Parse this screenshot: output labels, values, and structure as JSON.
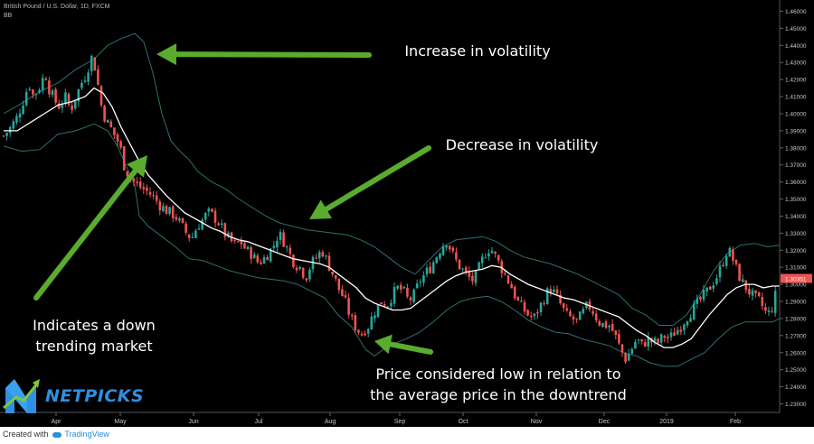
{
  "header": {
    "symbol_title": "British Pound / U.S. Dollar, 1D, FXCM",
    "indicator": "BB"
  },
  "annotations": {
    "increase": "Increase in volatility",
    "decrease": "Decrease in volatility",
    "down_line1": "Indicates a down",
    "down_line2": "trending market",
    "low_line1": "Price considered low in relation to",
    "low_line2": "the average price in the downtrend"
  },
  "logo": {
    "text": "NETPICKS"
  },
  "footer": {
    "created": "Created with",
    "brand": "TradingView"
  },
  "price_tag": "1.30351",
  "colors": {
    "up": "#26a69a",
    "down": "#ef5350",
    "bands": "#2f6f74",
    "basis": "#ffffff",
    "arrow": "#5aab2e",
    "tag": "#ef5350"
  },
  "chart_data": {
    "type": "candlestick",
    "y_ticks": [
      "1.46000",
      "1.45000",
      "1.44000",
      "1.43000",
      "1.42000",
      "1.41000",
      "1.40000",
      "1.39000",
      "1.38000",
      "1.37000",
      "1.36000",
      "1.35000",
      "1.34000",
      "1.33000",
      "1.32000",
      "1.31000",
      "1.30000",
      "1.29000",
      "1.28000",
      "1.27000",
      "1.26000",
      "1.25000",
      "1.24000",
      "1.23000"
    ],
    "ylim": [
      1.2255,
      1.4645
    ],
    "x_ticks": [
      "Apr",
      "May",
      "Jun",
      "Jul",
      "Aug",
      "Sep",
      "Oct",
      "Nov",
      "Dec",
      "2019",
      "Feb"
    ],
    "last_price": 1.30351,
    "close_path": [
      [
        0,
        1.387
      ],
      [
        8,
        1.392
      ],
      [
        15,
        1.398
      ],
      [
        22,
        1.408
      ],
      [
        28,
        1.418
      ],
      [
        33,
        1.41
      ],
      [
        40,
        1.416
      ],
      [
        46,
        1.424
      ],
      [
        50,
        1.415
      ],
      [
        56,
        1.408
      ],
      [
        62,
        1.404
      ],
      [
        68,
        1.41
      ],
      [
        74,
        1.402
      ],
      [
        80,
        1.41
      ],
      [
        86,
        1.418
      ],
      [
        90,
        1.422
      ],
      [
        94,
        1.428
      ],
      [
        97,
        1.433
      ],
      [
        100,
        1.43
      ],
      [
        104,
        1.418
      ],
      [
        108,
        1.405
      ],
      [
        113,
        1.396
      ],
      [
        118,
        1.392
      ],
      [
        122,
        1.388
      ],
      [
        126,
        1.384
      ],
      [
        130,
        1.378
      ],
      [
        133,
        1.37
      ],
      [
        136,
        1.366
      ],
      [
        140,
        1.363
      ],
      [
        144,
        1.36
      ],
      [
        148,
        1.358
      ],
      [
        154,
        1.356
      ],
      [
        160,
        1.354
      ],
      [
        166,
        1.351
      ],
      [
        172,
        1.347
      ],
      [
        178,
        1.344
      ],
      [
        184,
        1.342
      ],
      [
        190,
        1.34
      ],
      [
        196,
        1.335
      ],
      [
        202,
        1.33
      ],
      [
        208,
        1.327
      ],
      [
        214,
        1.334
      ],
      [
        220,
        1.338
      ],
      [
        226,
        1.342
      ],
      [
        232,
        1.34
      ],
      [
        238,
        1.336
      ],
      [
        244,
        1.33
      ],
      [
        250,
        1.326
      ],
      [
        256,
        1.323
      ],
      [
        262,
        1.325
      ],
      [
        268,
        1.32
      ],
      [
        274,
        1.318
      ],
      [
        280,
        1.313
      ],
      [
        286,
        1.314
      ],
      [
        292,
        1.318
      ],
      [
        298,
        1.322
      ],
      [
        304,
        1.33
      ],
      [
        310,
        1.325
      ],
      [
        316,
        1.318
      ],
      [
        322,
        1.312
      ],
      [
        328,
        1.31
      ],
      [
        334,
        1.304
      ],
      [
        340,
        1.312
      ],
      [
        346,
        1.316
      ],
      [
        352,
        1.32
      ],
      [
        358,
        1.313
      ],
      [
        364,
        1.306
      ],
      [
        370,
        1.298
      ],
      [
        376,
        1.292
      ],
      [
        380,
        1.286
      ],
      [
        384,
        1.28
      ],
      [
        388,
        1.276
      ],
      [
        392,
        1.273
      ],
      [
        396,
        1.271
      ],
      [
        400,
        1.274
      ],
      [
        404,
        1.276
      ],
      [
        408,
        1.282
      ],
      [
        412,
        1.286
      ],
      [
        418,
        1.29
      ],
      [
        424,
        1.288
      ],
      [
        430,
        1.294
      ],
      [
        436,
        1.298
      ],
      [
        442,
        1.296
      ],
      [
        448,
        1.29
      ],
      [
        454,
        1.294
      ],
      [
        460,
        1.302
      ],
      [
        466,
        1.306
      ],
      [
        472,
        1.31
      ],
      [
        478,
        1.316
      ],
      [
        484,
        1.322
      ],
      [
        490,
        1.326
      ],
      [
        496,
        1.318
      ],
      [
        502,
        1.312
      ],
      [
        508,
        1.308
      ],
      [
        514,
        1.304
      ],
      [
        520,
        1.302
      ],
      [
        526,
        1.31
      ],
      [
        532,
        1.318
      ],
      [
        538,
        1.322
      ],
      [
        544,
        1.316
      ],
      [
        550,
        1.31
      ],
      [
        556,
        1.304
      ],
      [
        562,
        1.298
      ],
      [
        568,
        1.29
      ],
      [
        574,
        1.286
      ],
      [
        580,
        1.282
      ],
      [
        586,
        1.28
      ],
      [
        592,
        1.286
      ],
      [
        598,
        1.292
      ],
      [
        604,
        1.298
      ],
      [
        610,
        1.294
      ],
      [
        616,
        1.288
      ],
      [
        622,
        1.282
      ],
      [
        628,
        1.28
      ],
      [
        634,
        1.278
      ],
      [
        640,
        1.283
      ],
      [
        646,
        1.288
      ],
      [
        652,
        1.284
      ],
      [
        658,
        1.278
      ],
      [
        664,
        1.276
      ],
      [
        670,
        1.276
      ],
      [
        676,
        1.27
      ],
      [
        682,
        1.262
      ],
      [
        688,
        1.256
      ],
      [
        694,
        1.262
      ],
      [
        700,
        1.268
      ],
      [
        706,
        1.264
      ],
      [
        712,
        1.268
      ],
      [
        718,
        1.266
      ],
      [
        724,
        1.266
      ],
      [
        730,
        1.27
      ],
      [
        736,
        1.268
      ],
      [
        742,
        1.272
      ],
      [
        748,
        1.275
      ],
      [
        754,
        1.28
      ],
      [
        760,
        1.284
      ],
      [
        766,
        1.288
      ],
      [
        772,
        1.292
      ],
      [
        778,
        1.296
      ],
      [
        784,
        1.301
      ],
      [
        790,
        1.306
      ],
      [
        796,
        1.314
      ],
      [
        800,
        1.32
      ],
      [
        804,
        1.318
      ],
      [
        808,
        1.312
      ],
      [
        812,
        1.306
      ],
      [
        818,
        1.3
      ],
      [
        824,
        1.296
      ],
      [
        830,
        1.292
      ],
      [
        836,
        1.29
      ],
      [
        840,
        1.286
      ],
      [
        844,
        1.282
      ],
      [
        848,
        1.284
      ],
      [
        852,
        1.29
      ],
      [
        857,
        1.304
      ]
    ],
    "basis_path": [
      [
        0,
        1.39
      ],
      [
        15,
        1.39
      ],
      [
        30,
        1.395
      ],
      [
        45,
        1.4
      ],
      [
        60,
        1.405
      ],
      [
        75,
        1.407
      ],
      [
        90,
        1.41
      ],
      [
        100,
        1.415
      ],
      [
        110,
        1.412
      ],
      [
        120,
        1.404
      ],
      [
        130,
        1.392
      ],
      [
        140,
        1.382
      ],
      [
        150,
        1.372
      ],
      [
        160,
        1.364
      ],
      [
        170,
        1.358
      ],
      [
        180,
        1.352
      ],
      [
        190,
        1.347
      ],
      [
        200,
        1.342
      ],
      [
        210,
        1.339
      ],
      [
        220,
        1.336
      ],
      [
        230,
        1.333
      ],
      [
        240,
        1.331
      ],
      [
        250,
        1.328
      ],
      [
        260,
        1.326
      ],
      [
        270,
        1.325
      ],
      [
        280,
        1.323
      ],
      [
        290,
        1.321
      ],
      [
        300,
        1.319
      ],
      [
        310,
        1.317
      ],
      [
        320,
        1.315
      ],
      [
        330,
        1.314
      ],
      [
        340,
        1.313
      ],
      [
        350,
        1.312
      ],
      [
        360,
        1.31
      ],
      [
        370,
        1.306
      ],
      [
        380,
        1.302
      ],
      [
        390,
        1.298
      ],
      [
        400,
        1.292
      ],
      [
        410,
        1.289
      ],
      [
        420,
        1.287
      ],
      [
        430,
        1.285
      ],
      [
        440,
        1.285
      ],
      [
        450,
        1.286
      ],
      [
        460,
        1.29
      ],
      [
        470,
        1.294
      ],
      [
        480,
        1.298
      ],
      [
        490,
        1.302
      ],
      [
        500,
        1.305
      ],
      [
        510,
        1.307
      ],
      [
        520,
        1.308
      ],
      [
        530,
        1.309
      ],
      [
        540,
        1.311
      ],
      [
        550,
        1.31
      ],
      [
        560,
        1.306
      ],
      [
        570,
        1.303
      ],
      [
        580,
        1.3
      ],
      [
        590,
        1.298
      ],
      [
        600,
        1.296
      ],
      [
        610,
        1.294
      ],
      [
        620,
        1.292
      ],
      [
        630,
        1.291
      ],
      [
        640,
        1.289
      ],
      [
        650,
        1.287
      ],
      [
        660,
        1.285
      ],
      [
        670,
        1.283
      ],
      [
        680,
        1.281
      ],
      [
        690,
        1.277
      ],
      [
        700,
        1.273
      ],
      [
        710,
        1.27
      ],
      [
        720,
        1.266
      ],
      [
        730,
        1.263
      ],
      [
        740,
        1.263
      ],
      [
        750,
        1.265
      ],
      [
        760,
        1.268
      ],
      [
        770,
        1.275
      ],
      [
        780,
        1.282
      ],
      [
        790,
        1.288
      ],
      [
        800,
        1.294
      ],
      [
        810,
        1.298
      ],
      [
        820,
        1.3
      ],
      [
        830,
        1.3
      ],
      [
        840,
        1.298
      ],
      [
        850,
        1.299
      ],
      [
        858,
        1.299
      ]
    ],
    "upper_path": [
      [
        0,
        1.4
      ],
      [
        20,
        1.406
      ],
      [
        40,
        1.413
      ],
      [
        60,
        1.418
      ],
      [
        80,
        1.426
      ],
      [
        100,
        1.432
      ],
      [
        115,
        1.44
      ],
      [
        130,
        1.444
      ],
      [
        145,
        1.447
      ],
      [
        155,
        1.442
      ],
      [
        165,
        1.424
      ],
      [
        175,
        1.4
      ],
      [
        185,
        1.384
      ],
      [
        195,
        1.378
      ],
      [
        205,
        1.373
      ],
      [
        215,
        1.366
      ],
      [
        230,
        1.36
      ],
      [
        245,
        1.356
      ],
      [
        260,
        1.35
      ],
      [
        275,
        1.345
      ],
      [
        290,
        1.34
      ],
      [
        305,
        1.336
      ],
      [
        320,
        1.334
      ],
      [
        335,
        1.332
      ],
      [
        350,
        1.331
      ],
      [
        365,
        1.33
      ],
      [
        380,
        1.329
      ],
      [
        395,
        1.326
      ],
      [
        410,
        1.322
      ],
      [
        425,
        1.316
      ],
      [
        440,
        1.31
      ],
      [
        455,
        1.306
      ],
      [
        470,
        1.314
      ],
      [
        485,
        1.322
      ],
      [
        500,
        1.326
      ],
      [
        515,
        1.327
      ],
      [
        530,
        1.328
      ],
      [
        545,
        1.325
      ],
      [
        560,
        1.32
      ],
      [
        575,
        1.316
      ],
      [
        590,
        1.314
      ],
      [
        605,
        1.312
      ],
      [
        620,
        1.309
      ],
      [
        635,
        1.306
      ],
      [
        650,
        1.302
      ],
      [
        665,
        1.298
      ],
      [
        680,
        1.294
      ],
      [
        695,
        1.286
      ],
      [
        710,
        1.282
      ],
      [
        725,
        1.276
      ],
      [
        740,
        1.276
      ],
      [
        755,
        1.282
      ],
      [
        770,
        1.294
      ],
      [
        785,
        1.308
      ],
      [
        800,
        1.318
      ],
      [
        815,
        1.323
      ],
      [
        830,
        1.324
      ],
      [
        845,
        1.322
      ],
      [
        858,
        1.323
      ]
    ],
    "lower_path": [
      [
        0,
        1.381
      ],
      [
        20,
        1.378
      ],
      [
        40,
        1.379
      ],
      [
        60,
        1.388
      ],
      [
        80,
        1.39
      ],
      [
        100,
        1.394
      ],
      [
        115,
        1.39
      ],
      [
        125,
        1.382
      ],
      [
        135,
        1.37
      ],
      [
        145,
        1.358
      ],
      [
        150,
        1.34
      ],
      [
        160,
        1.334
      ],
      [
        175,
        1.328
      ],
      [
        190,
        1.322
      ],
      [
        205,
        1.315
      ],
      [
        220,
        1.314
      ],
      [
        235,
        1.311
      ],
      [
        250,
        1.308
      ],
      [
        265,
        1.306
      ],
      [
        280,
        1.304
      ],
      [
        295,
        1.303
      ],
      [
        310,
        1.302
      ],
      [
        325,
        1.3
      ],
      [
        340,
        1.296
      ],
      [
        355,
        1.292
      ],
      [
        370,
        1.282
      ],
      [
        385,
        1.275
      ],
      [
        400,
        1.262
      ],
      [
        410,
        1.258
      ],
      [
        420,
        1.262
      ],
      [
        430,
        1.265
      ],
      [
        445,
        1.268
      ],
      [
        460,
        1.272
      ],
      [
        475,
        1.278
      ],
      [
        490,
        1.285
      ],
      [
        505,
        1.29
      ],
      [
        520,
        1.292
      ],
      [
        535,
        1.293
      ],
      [
        550,
        1.29
      ],
      [
        565,
        1.285
      ],
      [
        580,
        1.279
      ],
      [
        595,
        1.275
      ],
      [
        610,
        1.272
      ],
      [
        625,
        1.271
      ],
      [
        640,
        1.268
      ],
      [
        655,
        1.266
      ],
      [
        670,
        1.264
      ],
      [
        685,
        1.26
      ],
      [
        700,
        1.258
      ],
      [
        715,
        1.254
      ],
      [
        730,
        1.252
      ],
      [
        745,
        1.252
      ],
      [
        760,
        1.256
      ],
      [
        775,
        1.26
      ],
      [
        790,
        1.268
      ],
      [
        805,
        1.275
      ],
      [
        820,
        1.278
      ],
      [
        835,
        1.278
      ],
      [
        850,
        1.278
      ],
      [
        858,
        1.28
      ]
    ]
  }
}
